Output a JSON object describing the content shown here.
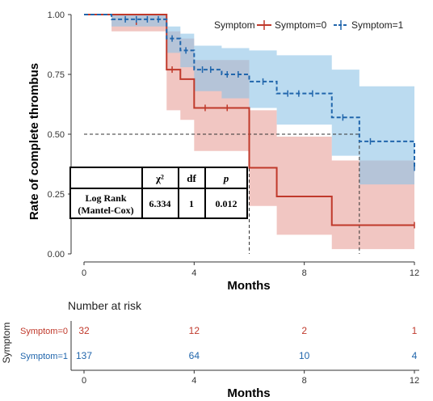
{
  "chart_data": {
    "type": "survival",
    "ylabel": "Rate of complete thrombus",
    "xlabel": "Months",
    "xlim": [
      0,
      12
    ],
    "ylim": [
      0,
      1
    ],
    "xticks": [
      0,
      4,
      8,
      12
    ],
    "yticks": [
      0.0,
      0.25,
      0.5,
      0.75,
      1.0
    ],
    "ytick_labels": [
      "0.00",
      "0.25",
      "0.50",
      "0.75",
      "1.00"
    ],
    "median_line_y": 0.5,
    "legend": {
      "title": "Symptom",
      "position": "top-right"
    },
    "series": [
      {
        "name": "Symptom=0",
        "color": "#c0392b",
        "band_color": "#e8a09a",
        "steps": [
          [
            0,
            1.0
          ],
          [
            3,
            0.77
          ],
          [
            3.5,
            0.73
          ],
          [
            4,
            0.61
          ],
          [
            6,
            0.36
          ],
          [
            7,
            0.24
          ],
          [
            9,
            0.12
          ],
          [
            12,
            0.12
          ]
        ],
        "upper": [
          [
            0,
            1.0
          ],
          [
            1,
            1.0
          ],
          [
            3,
            0.93
          ],
          [
            3.5,
            0.9
          ],
          [
            4,
            0.81
          ],
          [
            6,
            0.6
          ],
          [
            7,
            0.49
          ],
          [
            9,
            0.39
          ],
          [
            12,
            0.39
          ]
        ],
        "lower": [
          [
            0,
            1.0
          ],
          [
            1,
            0.93
          ],
          [
            3,
            0.6
          ],
          [
            3.5,
            0.56
          ],
          [
            4,
            0.43
          ],
          [
            6,
            0.2
          ],
          [
            7,
            0.08
          ],
          [
            9,
            0.02
          ],
          [
            12,
            0.02
          ]
        ],
        "censors": [
          [
            1.9,
            0.97
          ],
          [
            3.2,
            0.77
          ],
          [
            4.4,
            0.61
          ],
          [
            5.2,
            0.61
          ],
          [
            12,
            0.12
          ]
        ],
        "median_x": 6
      },
      {
        "name": "Symptom=1",
        "color": "#2166ac",
        "band_color": "#8ec3e6",
        "steps": [
          [
            0,
            1.0
          ],
          [
            1,
            0.98
          ],
          [
            3,
            0.9
          ],
          [
            3.5,
            0.85
          ],
          [
            4,
            0.77
          ],
          [
            5,
            0.75
          ],
          [
            6,
            0.72
          ],
          [
            7,
            0.67
          ],
          [
            9,
            0.57
          ],
          [
            10,
            0.47
          ],
          [
            12,
            0.36
          ]
        ],
        "upper": [
          [
            0,
            1.0
          ],
          [
            1,
            1.0
          ],
          [
            3,
            0.95
          ],
          [
            3.5,
            0.92
          ],
          [
            4,
            0.87
          ],
          [
            5,
            0.86
          ],
          [
            6,
            0.85
          ],
          [
            7,
            0.83
          ],
          [
            9,
            0.77
          ],
          [
            10,
            0.7
          ],
          [
            12,
            0.7
          ]
        ],
        "lower": [
          [
            0,
            1.0
          ],
          [
            1,
            0.95
          ],
          [
            3,
            0.84
          ],
          [
            3.5,
            0.78
          ],
          [
            4,
            0.68
          ],
          [
            5,
            0.65
          ],
          [
            6,
            0.61
          ],
          [
            7,
            0.54
          ],
          [
            9,
            0.41
          ],
          [
            10,
            0.29
          ],
          [
            12,
            0.29
          ]
        ],
        "censors": [
          [
            1.5,
            0.98
          ],
          [
            1.9,
            0.98
          ],
          [
            2.3,
            0.98
          ],
          [
            2.7,
            0.98
          ],
          [
            3.2,
            0.9
          ],
          [
            3.7,
            0.85
          ],
          [
            4.3,
            0.77
          ],
          [
            4.6,
            0.77
          ],
          [
            5.2,
            0.75
          ],
          [
            5.6,
            0.75
          ],
          [
            6.5,
            0.72
          ],
          [
            7.4,
            0.67
          ],
          [
            7.8,
            0.67
          ],
          [
            8.3,
            0.67
          ],
          [
            9.4,
            0.57
          ],
          [
            10.4,
            0.47
          ],
          [
            12,
            0.36
          ]
        ],
        "median_x": 10
      }
    ]
  },
  "stats_table": {
    "headers": [
      "",
      "χ²",
      "df",
      "p"
    ],
    "row_label_1": "Log Rank",
    "row_label_2": "(Mantel-Cox)",
    "chi2": "6.334",
    "df": "1",
    "p": "0.012"
  },
  "risk_table": {
    "title": "Number at risk",
    "ylabel": "Symptom",
    "xlabel": "Months",
    "xticks": [
      0,
      4,
      8,
      12
    ],
    "rows": [
      {
        "name": "Symptom=0",
        "color": "#c0392b",
        "values": [
          "32",
          "12",
          "2",
          "1"
        ]
      },
      {
        "name": "Symptom=1",
        "color": "#2166ac",
        "values": [
          "137",
          "64",
          "10",
          "4"
        ]
      }
    ]
  }
}
